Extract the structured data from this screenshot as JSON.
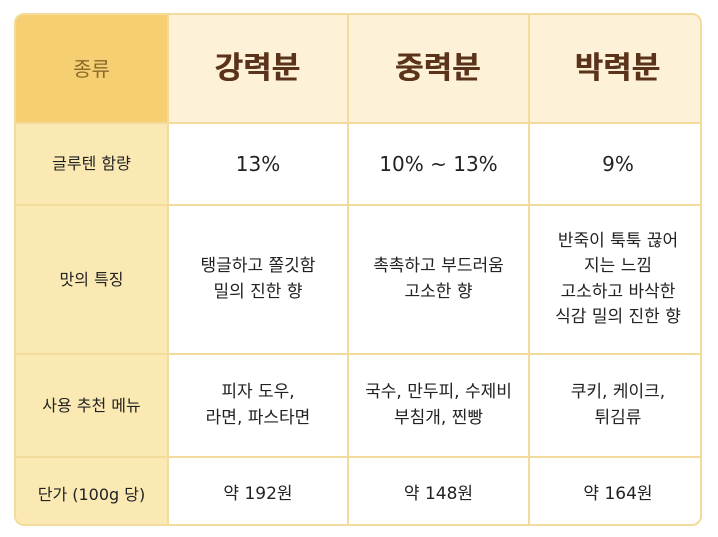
{
  "table": {
    "corner_label": "종류",
    "columns": [
      "강력분",
      "중력분",
      "박력분"
    ],
    "rows": [
      {
        "label": "글루텐 함량",
        "cells": [
          [
            "13%"
          ],
          [
            "10% ~ 13%"
          ],
          [
            "9%"
          ]
        ]
      },
      {
        "label": "맛의 특징",
        "cells": [
          [
            "탱글하고 쫄깃함",
            "밀의 진한 향"
          ],
          [
            "촉촉하고 부드러움",
            "고소한 향"
          ],
          [
            "반죽이 툭툭 끊어",
            "지는 느낌",
            "고소하고 바삭한",
            "식감 밀의 진한 향"
          ]
        ]
      },
      {
        "label": "사용 추천 메뉴",
        "cells": [
          [
            "피자 도우,",
            "라면, 파스타면"
          ],
          [
            "국수, 만두피, 수제비",
            "부침개, 찐빵"
          ],
          [
            "쿠키, 케이크,",
            "튀김류"
          ]
        ]
      },
      {
        "label": "단가 (100g 당)",
        "cells": [
          [
            "약 192원"
          ],
          [
            "약 148원"
          ],
          [
            "약 164원"
          ]
        ]
      }
    ]
  },
  "colors": {
    "corner_bg": "#f6cf73",
    "row_header_bg": "#fbe9b4",
    "column_header_bg": "#fdf2d7",
    "column_header_text": "#5a331a",
    "border": "#f3dc9b"
  }
}
